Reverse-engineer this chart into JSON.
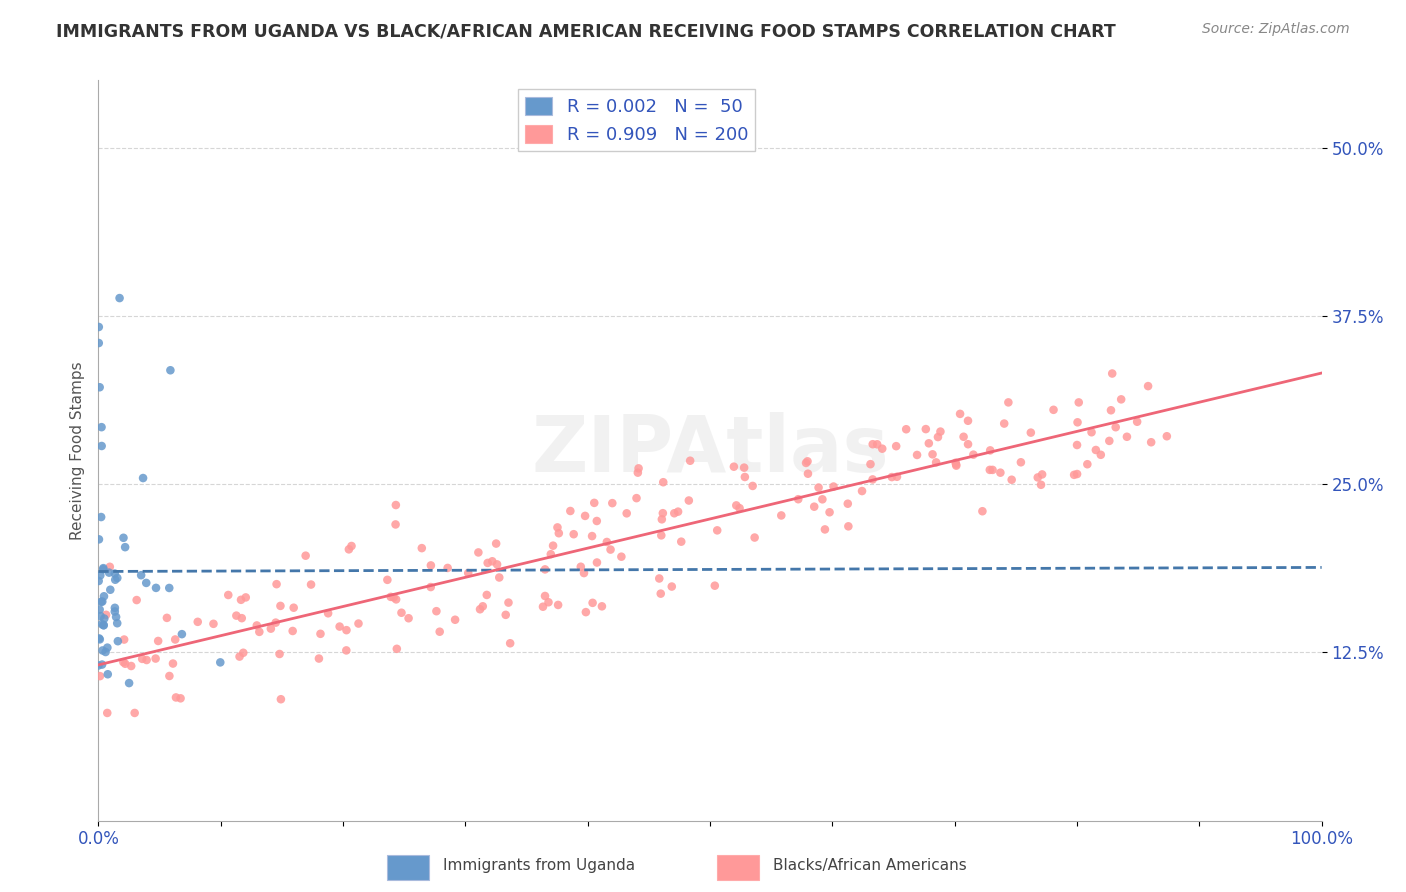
{
  "title": "IMMIGRANTS FROM UGANDA VS BLACK/AFRICAN AMERICAN RECEIVING FOOD STAMPS CORRELATION CHART",
  "source": "Source: ZipAtlas.com",
  "ylabel": "Receiving Food Stamps",
  "xlim": [
    0.0,
    1.0
  ],
  "ylim": [
    0.0,
    0.55
  ],
  "yticks": [
    0.125,
    0.25,
    0.375,
    0.5
  ],
  "ytick_labels": [
    "12.5%",
    "25.0%",
    "37.5%",
    "50.0%"
  ],
  "legend_r1": "R = 0.002",
  "legend_n1": "N =  50",
  "legend_r2": "R = 0.909",
  "legend_n2": "N = 200",
  "blue_color": "#6699CC",
  "pink_color": "#FF9999",
  "blue_line_color": "#4477AA",
  "pink_line_color": "#EE6677",
  "axis_label_color": "#3355BB",
  "background_color": "#FFFFFF",
  "watermark": "ZIPAtlas",
  "seed_uganda": 42,
  "n_uganda": 50,
  "seed_black": 7,
  "n_black": 200
}
